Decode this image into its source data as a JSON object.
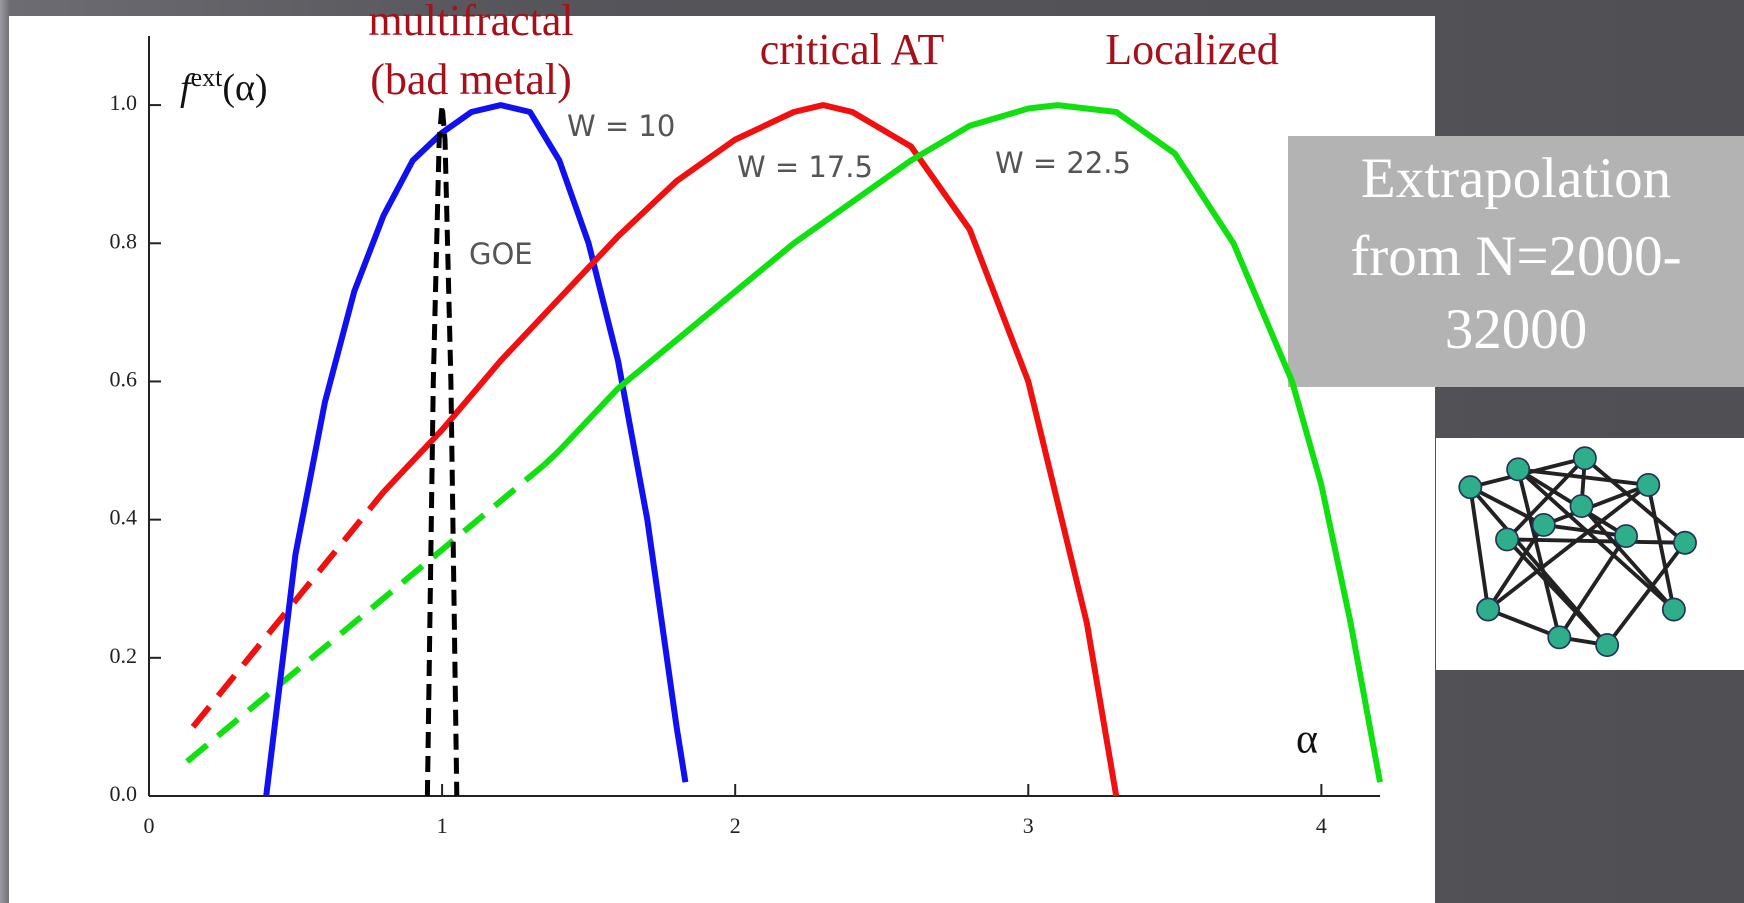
{
  "chart_data": {
    "type": "line",
    "ylabel": "f",
    "ylabel_sup": "ext",
    "ylabel_tail": "(α)",
    "xlabel": "α",
    "annotations": [
      "multifractal",
      "(bad metal)",
      "critical AT",
      "Localized"
    ],
    "xlim": [
      0,
      4.2
    ],
    "ylim": [
      0,
      1.1
    ],
    "xticks": [
      0,
      1,
      2,
      3,
      4
    ],
    "yticks": [
      {
        "value": 0,
        "label": "0.0"
      },
      {
        "value": 0.2,
        "label": "0.2"
      },
      {
        "value": 0.4,
        "label": "0.4"
      },
      {
        "value": 0.6,
        "label": "0.6"
      },
      {
        "value": 0.8,
        "label": "0.8"
      },
      {
        "value": 1,
        "label": "1.0"
      }
    ],
    "series": [
      {
        "name": "W = 10",
        "color": "#1010f0",
        "x": [
          0.4,
          0.5,
          0.6,
          0.7,
          0.8,
          0.9,
          1.0,
          1.1,
          1.2,
          1.3,
          1.4,
          1.5,
          1.6,
          1.7,
          1.8,
          1.83
        ],
        "values": [
          0,
          0.35,
          0.57,
          0.73,
          0.84,
          0.92,
          0.96,
          0.99,
          1.0,
          0.99,
          0.92,
          0.8,
          0.63,
          0.4,
          0.1,
          0.02
        ]
      },
      {
        "name": "W = 17.5",
        "color": "#f01010",
        "x": [
          0.8,
          1.0,
          1.2,
          1.4,
          1.6,
          1.8,
          2.0,
          2.2,
          2.3,
          2.4,
          2.6,
          2.8,
          3.0,
          3.2,
          3.3
        ],
        "values": [
          0.44,
          0.53,
          0.63,
          0.72,
          0.81,
          0.89,
          0.95,
          0.99,
          1.0,
          0.99,
          0.94,
          0.82,
          0.6,
          0.25,
          0
        ]
      },
      {
        "name": "W = 22.5",
        "color": "#10e010",
        "x": [
          1.35,
          1.4,
          1.6,
          1.8,
          2.0,
          2.2,
          2.4,
          2.6,
          2.8,
          3.0,
          3.1,
          3.3,
          3.5,
          3.7,
          3.9,
          4.0,
          4.1,
          4.2
        ],
        "values": [
          0.48,
          0.5,
          0.59,
          0.66,
          0.73,
          0.8,
          0.86,
          0.92,
          0.97,
          0.995,
          1.0,
          0.99,
          0.93,
          0.8,
          0.6,
          0.45,
          0.25,
          0.02
        ]
      },
      {
        "name": "GOE",
        "color": "#000000",
        "dashed": true,
        "x": [
          0.95,
          0.97,
          0.99,
          1.0,
          1.01,
          1.03,
          1.05
        ],
        "values": [
          0,
          0.6,
          0.95,
          1.0,
          0.95,
          0.6,
          0
        ]
      }
    ],
    "extrapolations": [
      {
        "color": "#f01010",
        "x": [
          0.15,
          0.8
        ],
        "values": [
          0.1,
          0.44
        ]
      },
      {
        "color": "#10e010",
        "x": [
          0.13,
          1.35
        ],
        "values": [
          0.05,
          0.48
        ]
      }
    ]
  },
  "sidebar": {
    "lines": [
      "Extrapolation",
      "from N=2000-",
      "32000"
    ]
  }
}
